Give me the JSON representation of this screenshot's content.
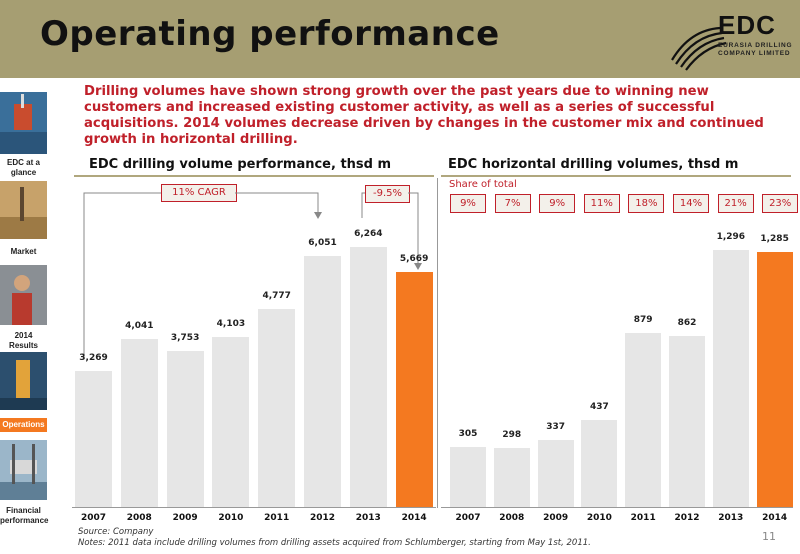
{
  "header": {
    "title": "Operating performance",
    "logo_text": "EDC",
    "logo_sub_1": "EURASIA DRILLING",
    "logo_sub_2": "COMPANY LIMITED"
  },
  "sidebar": {
    "items": [
      {
        "label": "EDC at a glance",
        "active": false
      },
      {
        "label": "Market",
        "active": false
      },
      {
        "label": "2014 Results",
        "active": false
      },
      {
        "label": "Operations",
        "active": true
      },
      {
        "label": "Financial performance",
        "active": false
      }
    ]
  },
  "intro_text": "Drilling volumes have shown strong growth over the past years due to winning new customers and increased existing customer activity, as well as a series of successful acquisitions. 2014 volumes decrease driven by changes in the customer mix and continued growth in horizontal drilling.",
  "colors": {
    "accent": "#f47920",
    "bar": "#e6e6e6",
    "red": "#c0202a",
    "header": "#a69e72"
  },
  "chart_data": [
    {
      "type": "bar",
      "title": "EDC drilling volume performance, thsd m",
      "categories": [
        "2007",
        "2008",
        "2009",
        "2010",
        "2011",
        "2012",
        "2013",
        "2014"
      ],
      "values": [
        3269,
        4041,
        3753,
        4103,
        4777,
        6051,
        6264,
        5669
      ],
      "value_labels": [
        "3,269",
        "4,041",
        "3,753",
        "4,103",
        "4,777",
        "6,051",
        "6,264",
        "5,669"
      ],
      "highlight_index": 7,
      "annotations": {
        "cagr": "11% CAGR",
        "decline": "-9.5%"
      }
    },
    {
      "type": "bar",
      "title": "EDC horizontal drilling volumes, thsd m",
      "categories": [
        "2007",
        "2008",
        "2009",
        "2010",
        "2011",
        "2012",
        "2013",
        "2014"
      ],
      "values": [
        305,
        298,
        337,
        437,
        879,
        862,
        1296,
        1285
      ],
      "value_labels": [
        "305",
        "298",
        "337",
        "437",
        "879",
        "862",
        "1,296",
        "1,285"
      ],
      "highlight_index": 7,
      "share_label": "Share of total",
      "share_of_total": [
        "9%",
        "7%",
        "9%",
        "11%",
        "18%",
        "14%",
        "21%",
        "23%"
      ]
    }
  ],
  "footer": {
    "source": "Source: Company",
    "notes": "Notes: 2011 data include drilling volumes from drilling assets acquired from Schlumberger, starting from May 1st, 2011.",
    "page": "11"
  }
}
